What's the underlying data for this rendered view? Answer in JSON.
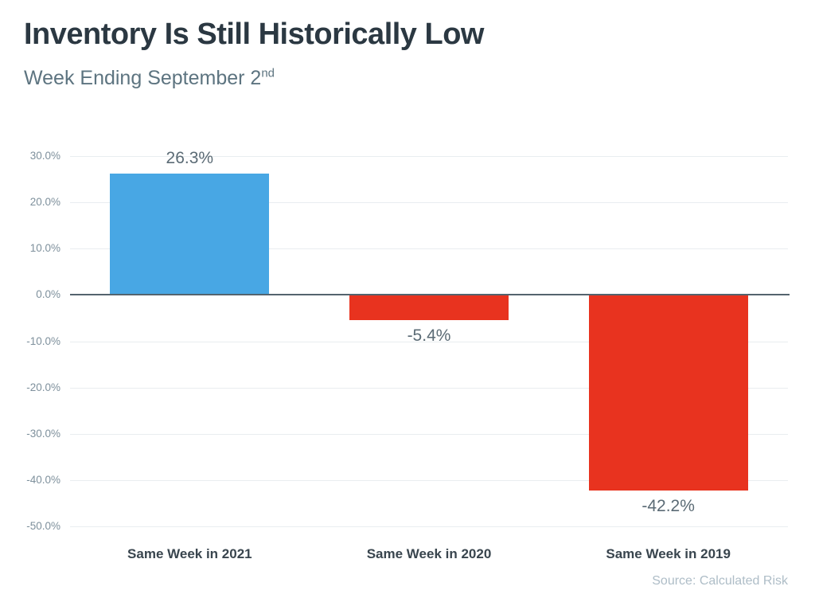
{
  "header": {
    "title": "Inventory Is Still Historically Low",
    "subtitle_text": "Week Ending September 2",
    "subtitle_superscript": "nd"
  },
  "footer": {
    "source_label": "Source: Calculated Risk"
  },
  "colors": {
    "positive_bar": "#48a7e4",
    "negative_bar": "#e8331f",
    "zero_line": "#54646e",
    "gridline": "#e9edf0",
    "title_text": "#2b3842",
    "subtitle_text": "#5d7480",
    "axis_tick_text": "#7e909c",
    "value_label_text": "#5b6b75",
    "category_label_text": "#39454e",
    "source_text": "#aebdc7",
    "background": "#ffffff"
  },
  "chart_data": {
    "type": "bar",
    "title": "Inventory Is Still Historically Low",
    "subtitle": "Week Ending September 2nd",
    "categories": [
      "Same Week in 2021",
      "Same Week in 2020",
      "Same Week in 2019"
    ],
    "values": [
      26.3,
      -5.4,
      -42.2
    ],
    "value_labels": [
      "26.3%",
      "-5.4%",
      "-42.2%"
    ],
    "bar_colors": [
      "#48a7e4",
      "#e8331f",
      "#e8331f"
    ],
    "xlabel": "",
    "ylabel": "",
    "ylim": [
      -50,
      30
    ],
    "yticks": [
      30,
      20,
      10,
      0,
      -10,
      -20,
      -30,
      -40,
      -50
    ],
    "ytick_labels": [
      "30.0%",
      "20.0%",
      "10.0%",
      "0.0%",
      "-10.0%",
      "-20.0%",
      "-30.0%",
      "-40.0%",
      "-50.0%"
    ],
    "grid": true,
    "legend_position": "none",
    "source": "Source: Calculated Risk"
  }
}
